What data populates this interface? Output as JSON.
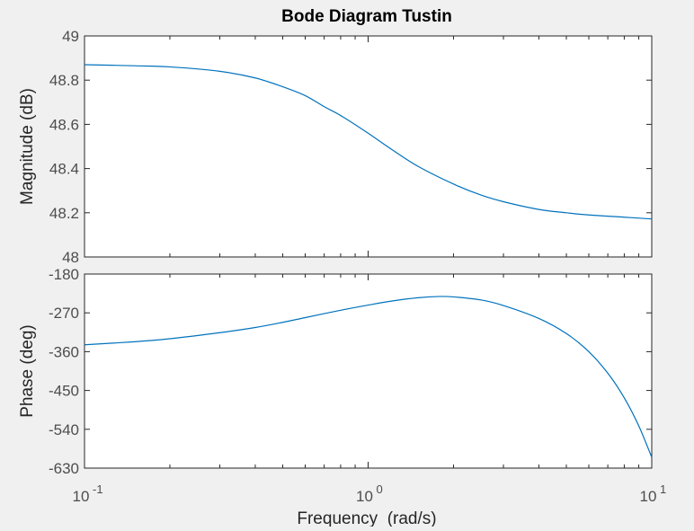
{
  "chart_data": [
    {
      "type": "line",
      "title": "Bode Diagram Tustin",
      "ylabel": "Magnitude (dB)",
      "xscale": "log",
      "xlim": [
        0.1,
        10
      ],
      "ylim": [
        48,
        49
      ],
      "yticks": [
        "48",
        "48.2",
        "48.4",
        "48.6",
        "48.8",
        "49"
      ],
      "grid": false,
      "series": [
        {
          "x": [
            0.1,
            0.15,
            0.2,
            0.3,
            0.4,
            0.5,
            0.6,
            0.7,
            0.8,
            1.0,
            1.2,
            1.5,
            2.0,
            2.5,
            3.0,
            4.0,
            5.0,
            6.0,
            8.0,
            10.0
          ],
          "values": [
            48.87,
            48.865,
            48.86,
            48.84,
            48.81,
            48.77,
            48.73,
            48.68,
            48.64,
            48.56,
            48.49,
            48.41,
            48.33,
            48.28,
            48.25,
            48.215,
            48.2,
            48.19,
            48.18,
            48.172
          ]
        }
      ]
    },
    {
      "type": "line",
      "ylabel": "Phase (deg)",
      "xlabel": "Frequency  (rad/s)",
      "xscale": "log",
      "xlim": [
        0.1,
        10
      ],
      "xticks": [
        {
          "base": "10",
          "exp": "-1"
        },
        {
          "base": "10",
          "exp": "0"
        },
        {
          "base": "10",
          "exp": "1"
        }
      ],
      "ylim": [
        -630,
        -180
      ],
      "yticks": [
        "-180",
        "-270",
        "-360",
        "-450",
        "-540",
        "-630"
      ],
      "grid": false,
      "series": [
        {
          "x": [
            0.1,
            0.15,
            0.2,
            0.3,
            0.4,
            0.5,
            0.6,
            0.8,
            1.0,
            1.2,
            1.5,
            1.8,
            2.0,
            2.5,
            3.0,
            4.0,
            5.0,
            6.0,
            7.0,
            8.0,
            9.0,
            10.0
          ],
          "values": [
            -344,
            -337,
            -330,
            -316,
            -304,
            -292,
            -281,
            -264,
            -252,
            -243,
            -235,
            -232,
            -233,
            -240,
            -253,
            -283,
            -318,
            -360,
            -410,
            -467,
            -532,
            -605
          ]
        }
      ]
    }
  ],
  "colors": {
    "line": "#0072bd",
    "axes_background": "#ffffff",
    "figure_background": "#f0f0f0",
    "axis_line": "#262626"
  }
}
